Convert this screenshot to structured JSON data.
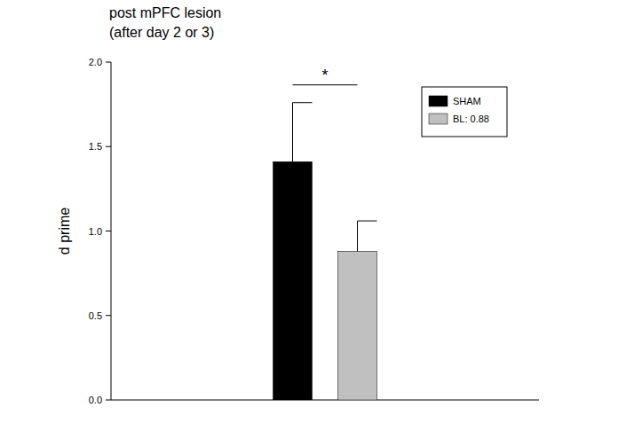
{
  "chart_data": {
    "type": "bar",
    "title": [
      "post mPFC lesion",
      "(after day 2 or 3)"
    ],
    "y_label": "d prime",
    "categories": [
      null
    ],
    "series": [
      {
        "name": "SHAM",
        "color": "#000000",
        "values": [
          1.41
        ],
        "errors": [
          0.35
        ]
      },
      {
        "name": "BL: 0.88",
        "color": "#c0c0c0",
        "values": [
          0.88
        ],
        "errors": [
          0.18
        ]
      }
    ],
    "ylim": [
      0,
      2.0
    ],
    "yticks": [
      {
        "value": 0,
        "label": "0.0"
      },
      0.5,
      {
        "value": 1.0,
        "label": "1.0"
      },
      1.5,
      {
        "value": 2.0,
        "label": "2.0"
      }
    ],
    "annotation": "*",
    "legend": "top-right",
    "tick_labels": "y",
    "grid": false
  }
}
